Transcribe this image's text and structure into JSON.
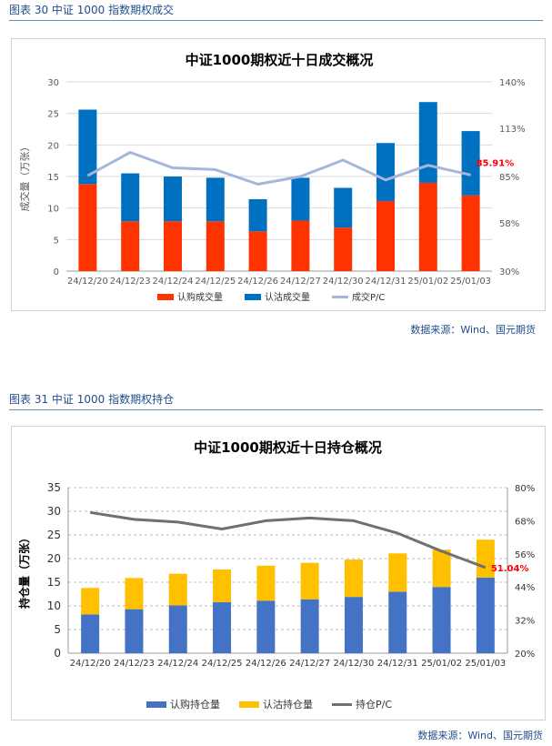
{
  "figure30": {
    "caption": "图表 30  中证 1000 指数期权成交",
    "source": "数据来源：Wind、国元期货",
    "chart_data": {
      "type": "bar",
      "title": "中证1000期权近十日成交概况",
      "ylabel": "成交量（万张）",
      "categories": [
        "24/12/20",
        "24/12/23",
        "24/12/24",
        "24/12/25",
        "24/12/26",
        "24/12/27",
        "24/12/30",
        "24/12/31",
        "25/01/02",
        "25/01/03"
      ],
      "ylim": [
        0,
        30
      ],
      "yticks": [
        0,
        5,
        10,
        15,
        20,
        25,
        30
      ],
      "y2lim": [
        30,
        140
      ],
      "y2ticks": [
        "30%",
        "58%",
        "85%",
        "113%",
        "140%"
      ],
      "series": [
        {
          "name": "认购成交量",
          "color": "#ff3300",
          "values": [
            13.8,
            7.9,
            7.9,
            7.9,
            6.3,
            8.0,
            6.9,
            11.1,
            14.0,
            12.0
          ]
        },
        {
          "name": "认沽成交量",
          "color": "#0070c0",
          "values": [
            11.8,
            7.6,
            7.1,
            6.9,
            5.1,
            6.8,
            6.3,
            9.2,
            12.8,
            10.2
          ]
        },
        {
          "name": "成交P/C",
          "color": "#a6b6d8",
          "axis": "right",
          "values": [
            85.5,
            99.0,
            90.0,
            89.0,
            80.5,
            85.0,
            94.5,
            83.0,
            91.5,
            85.91
          ]
        }
      ],
      "annotation": "85.91%",
      "legend_position": "bottom"
    }
  },
  "figure31": {
    "caption": "图表 31  中证 1000 指数期权持仓",
    "source": "数据来源：Wind、国元期货",
    "chart_data": {
      "type": "bar",
      "title": "中证1000期权近十日持仓概况",
      "ylabel": "持仓量（万张）",
      "categories": [
        "24/12/20",
        "24/12/23",
        "24/12/24",
        "24/12/25",
        "24/12/26",
        "24/12/27",
        "24/12/30",
        "24/12/31",
        "25/01/02",
        "25/01/03"
      ],
      "ylim": [
        0,
        35
      ],
      "yticks": [
        0,
        5,
        10,
        15,
        20,
        25,
        30,
        35
      ],
      "y2lim": [
        20,
        80
      ],
      "y2ticks": [
        "20%",
        "32%",
        "44%",
        "56%",
        "68%",
        "80%"
      ],
      "series": [
        {
          "name": "认购持仓量",
          "color": "#4472c4",
          "values": [
            8.2,
            9.3,
            10.1,
            10.8,
            11.1,
            11.4,
            11.9,
            13.0,
            14.0,
            16.0
          ]
        },
        {
          "name": "认沽持仓量",
          "color": "#ffc000",
          "values": [
            5.6,
            6.6,
            6.7,
            6.9,
            7.4,
            7.7,
            7.9,
            8.1,
            7.9,
            8.0
          ]
        },
        {
          "name": "持仓P/C",
          "color": "#707070",
          "axis": "right",
          "values": [
            71.0,
            68.5,
            67.5,
            65.0,
            68.0,
            69.0,
            68.0,
            63.5,
            57.0,
            51.04
          ]
        }
      ],
      "annotation": "51.04%",
      "legend_position": "bottom"
    }
  }
}
